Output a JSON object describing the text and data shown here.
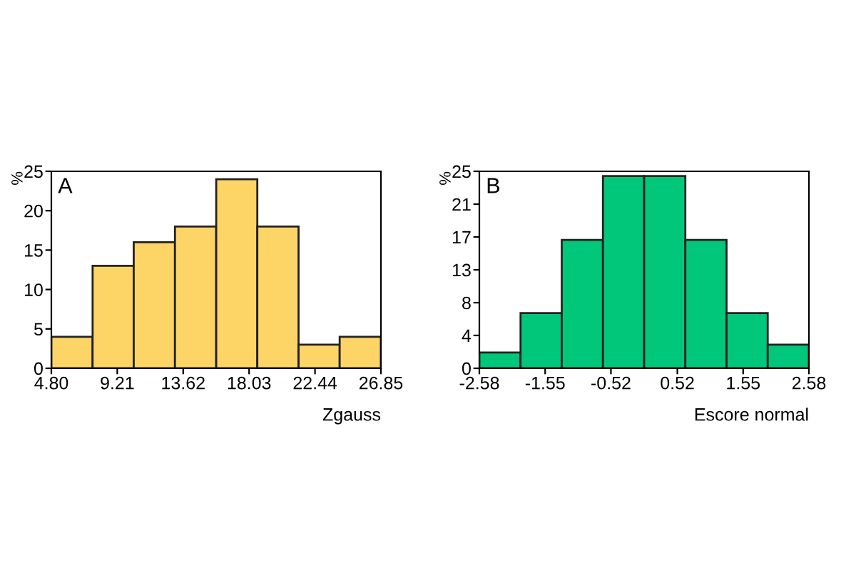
{
  "chart_data": [
    {
      "type": "histogram",
      "title": "A",
      "ylabel": "%",
      "xlabel": "Zgauss",
      "bins": [
        4.8,
        7.56,
        10.31,
        13.07,
        15.83,
        18.58,
        21.34,
        24.09,
        26.85
      ],
      "values": [
        4,
        13,
        16,
        18,
        24,
        18,
        3,
        4
      ],
      "color": "#fdd466",
      "xlim": [
        4.8,
        26.85
      ],
      "xticks": [
        {
          "value": 4.8,
          "label": "4.80"
        },
        9.21,
        13.62,
        18.03,
        22.44,
        26.85
      ],
      "ylim": [
        0,
        25
      ],
      "yticks": [
        0,
        5,
        10,
        15,
        20,
        25
      ],
      "grid": false,
      "legend": false
    },
    {
      "type": "histogram",
      "title": "B",
      "ylabel": "%",
      "xlabel": "Escore normal",
      "bins": [
        -2.58,
        -1.935,
        -1.29,
        -0.645,
        0,
        0.645,
        1.29,
        1.935,
        2.58
      ],
      "values": [
        2,
        7,
        16.3,
        24.4,
        24.4,
        16.3,
        7,
        3
      ],
      "color": "#00c77a",
      "xlim": [
        -2.58,
        2.58
      ],
      "xticks": [
        -2.58,
        -1.55,
        -0.52,
        0.52,
        1.55,
        2.58
      ],
      "ylim": [
        0,
        25
      ],
      "yticks": [
        0,
        {
          "value": 4.17,
          "label": "4"
        },
        {
          "value": 8.33,
          "label": "8"
        },
        {
          "value": 12.5,
          "label": "13"
        },
        {
          "value": 16.67,
          "label": "17"
        },
        {
          "value": 20.83,
          "label": "21"
        },
        25
      ],
      "grid": false,
      "legend": false
    }
  ]
}
